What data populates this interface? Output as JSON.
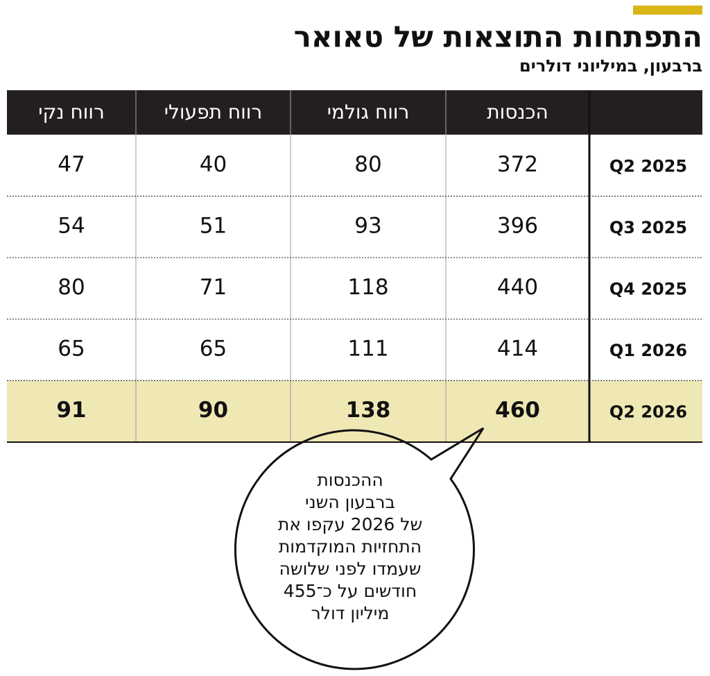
{
  "header": {
    "title": "התפתחות התוצאות של טאואר",
    "subtitle": "ברבעון, במיליוני דולרים"
  },
  "table": {
    "columns": [
      "הכנסות",
      "רווח גולמי",
      "רווח תפעולי",
      "רווח נקי"
    ],
    "rows": [
      {
        "label": "Q2 2025",
        "values": [
          372,
          80,
          40,
          47
        ]
      },
      {
        "label": "Q3 2025",
        "values": [
          396,
          93,
          51,
          54
        ]
      },
      {
        "label": "Q4 2025",
        "values": [
          440,
          118,
          71,
          80
        ]
      },
      {
        "label": "Q1 2026",
        "values": [
          414,
          111,
          65,
          65
        ]
      },
      {
        "label": "Q2 2026",
        "values": [
          460,
          138,
          90,
          91
        ]
      }
    ]
  },
  "callout": {
    "lines": [
      "ההכנסות",
      "ברבעון השני",
      "של 2026 עקפו את",
      "התחזיות המוקדמות",
      "שעמדו לפני שלושה",
      "חודשים  על כ־455",
      "מיליון דולר"
    ]
  }
}
